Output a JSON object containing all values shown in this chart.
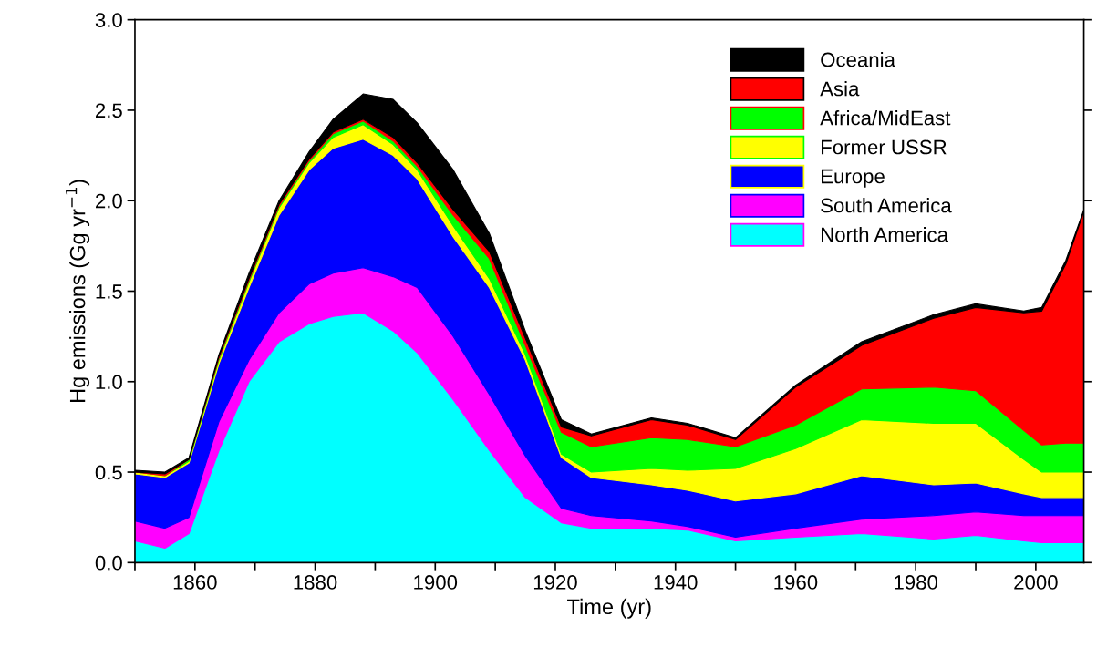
{
  "chart_data": {
    "type": "area",
    "stacked": true,
    "xlabel": "Time (yr)",
    "ylabel": "Hg emissions (Gg yr$^{−1}$)",
    "x": [
      1850,
      1855,
      1859,
      1864,
      1869,
      1874,
      1879,
      1883,
      1888,
      1893,
      1897,
      1903,
      1909,
      1915,
      1921,
      1926,
      1936,
      1942,
      1950,
      1960,
      1971,
      1983,
      1990,
      1998,
      2001,
      2005,
      2008
    ],
    "series": [
      {
        "name": "North America",
        "color": "#00ffff",
        "values": [
          0.12,
          0.08,
          0.16,
          0.62,
          1.0,
          1.22,
          1.32,
          1.36,
          1.38,
          1.28,
          1.16,
          0.9,
          0.62,
          0.36,
          0.22,
          0.19,
          0.19,
          0.18,
          0.12,
          0.14,
          0.16,
          0.13,
          0.15,
          0.12,
          0.11,
          0.11,
          0.11
        ]
      },
      {
        "name": "South America",
        "color": "#ff00ff",
        "values": [
          0.11,
          0.11,
          0.09,
          0.16,
          0.12,
          0.16,
          0.22,
          0.24,
          0.25,
          0.3,
          0.36,
          0.35,
          0.31,
          0.23,
          0.08,
          0.07,
          0.04,
          0.02,
          0.02,
          0.05,
          0.08,
          0.13,
          0.13,
          0.14,
          0.15,
          0.15,
          0.15
        ]
      },
      {
        "name": "Europe",
        "color": "#0000ff",
        "values": [
          0.26,
          0.28,
          0.3,
          0.32,
          0.4,
          0.54,
          0.63,
          0.69,
          0.71,
          0.67,
          0.6,
          0.55,
          0.59,
          0.53,
          0.28,
          0.21,
          0.2,
          0.2,
          0.2,
          0.19,
          0.24,
          0.17,
          0.16,
          0.12,
          0.1,
          0.1,
          0.1
        ]
      },
      {
        "name": "Former USSR",
        "color": "#ffff00",
        "values": [
          0.01,
          0.01,
          0.01,
          0.02,
          0.03,
          0.04,
          0.04,
          0.06,
          0.08,
          0.06,
          0.05,
          0.06,
          0.05,
          0.03,
          0.02,
          0.03,
          0.09,
          0.11,
          0.18,
          0.25,
          0.31,
          0.34,
          0.33,
          0.19,
          0.14,
          0.14,
          0.14
        ]
      },
      {
        "name": "Africa/MidEast",
        "color": "#00ff00",
        "values": [
          0,
          0,
          0.01,
          0.01,
          0.01,
          0.01,
          0.01,
          0.02,
          0.02,
          0.02,
          0.02,
          0.06,
          0.11,
          0.05,
          0.12,
          0.14,
          0.17,
          0.17,
          0.12,
          0.13,
          0.17,
          0.2,
          0.18,
          0.16,
          0.15,
          0.16,
          0.16
        ]
      },
      {
        "name": "Asia",
        "color": "#ff0000",
        "values": [
          0,
          0.01,
          0,
          0.01,
          0.01,
          0.01,
          0.01,
          0.01,
          0.01,
          0.02,
          0.02,
          0.03,
          0.04,
          0.04,
          0.03,
          0.06,
          0.1,
          0.08,
          0.04,
          0.21,
          0.24,
          0.38,
          0.46,
          0.65,
          0.74,
          0.99,
          1.28
        ]
      },
      {
        "name": "Oceania",
        "color": "#000000",
        "values": [
          0.01,
          0.01,
          0.01,
          0.01,
          0.03,
          0.02,
          0.04,
          0.07,
          0.14,
          0.21,
          0.22,
          0.22,
          0.1,
          0.04,
          0.04,
          0.01,
          0.01,
          0.01,
          0.01,
          0.01,
          0.02,
          0.02,
          0.02,
          0.01,
          0.02,
          0.02,
          0.01
        ]
      }
    ],
    "xlim": [
      1850,
      2008
    ],
    "xticks": [
      {
        "value": 1850,
        "label": null
      },
      1860,
      {
        "value": 1870,
        "label": null
      },
      1880,
      {
        "value": 1890,
        "label": null
      },
      1900,
      {
        "value": 1910,
        "label": null
      },
      1920,
      {
        "value": 1930,
        "label": null
      },
      1940,
      {
        "value": 1950,
        "label": null
      },
      1960,
      {
        "value": 1970,
        "label": null
      },
      1980,
      {
        "value": 1990,
        "label": null
      },
      2000
    ],
    "ylim": [
      0,
      3
    ],
    "yticks": [
      {
        "value": 0,
        "label": "0.0"
      },
      {
        "value": 0.5,
        "label": "0.5"
      },
      {
        "value": 1,
        "label": "1.0"
      },
      {
        "value": 1.5,
        "label": "1.5"
      },
      {
        "value": 2,
        "label": "2.0"
      },
      {
        "value": 2.5,
        "label": "2.5"
      },
      {
        "value": 3,
        "label": "3.0"
      }
    ],
    "legend": "top right",
    "grid": false
  }
}
